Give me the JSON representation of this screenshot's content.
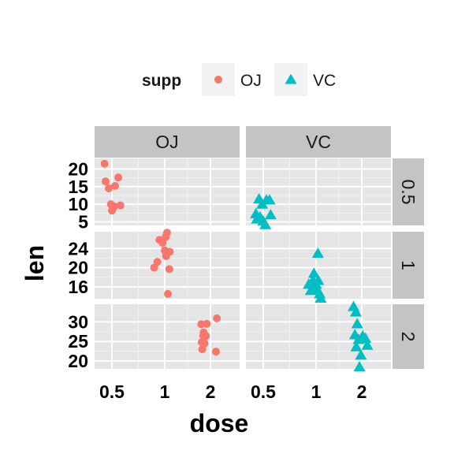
{
  "chart_data": {
    "type": "scatter",
    "xlabel": "dose",
    "ylabel": "len",
    "x_ticks": [
      "0.5",
      "1",
      "2"
    ],
    "x_scale": "categorical-jitter",
    "facet_cols": [
      "OJ",
      "VC"
    ],
    "facet_rows": [
      "0.5",
      "1",
      "2"
    ],
    "legend": {
      "title": "supp",
      "position": "top",
      "entries": [
        {
          "label": "OJ",
          "shape": "circle",
          "color": "#F8766D"
        },
        {
          "label": "VC",
          "shape": "triangle",
          "color": "#00BFC4"
        }
      ]
    },
    "grid": true,
    "panel_background": "#e5e5e5",
    "rows": [
      {
        "dose": "0.5",
        "ylim": [
          4,
          23
        ],
        "y_ticks": [
          5,
          10,
          15,
          20
        ],
        "panels": {
          "OJ": [
            {
              "x": 0.43,
              "y": 21.5
            },
            {
              "x": 0.44,
              "y": 16.5
            },
            {
              "x": 0.47,
              "y": 14.5
            },
            {
              "x": 0.49,
              "y": 10.0
            },
            {
              "x": 0.5,
              "y": 8.2
            },
            {
              "x": 0.52,
              "y": 9.4
            },
            {
              "x": 0.53,
              "y": 15.2
            },
            {
              "x": 0.56,
              "y": 17.6
            },
            {
              "x": 0.58,
              "y": 9.7
            },
            {
              "x": 0.51,
              "y": 9.0
            }
          ],
          "VC": [
            {
              "x": 0.43,
              "y": 7.3
            },
            {
              "x": 0.44,
              "y": 5.8
            },
            {
              "x": 0.46,
              "y": 11.5
            },
            {
              "x": 0.47,
              "y": 6.4
            },
            {
              "x": 0.49,
              "y": 10.0
            },
            {
              "x": 0.52,
              "y": 4.2
            },
            {
              "x": 0.53,
              "y": 11.2
            },
            {
              "x": 0.56,
              "y": 11.2
            },
            {
              "x": 0.57,
              "y": 7.0
            },
            {
              "x": 0.5,
              "y": 5.2
            }
          ]
        }
      },
      {
        "dose": "1",
        "ylim": [
          13.5,
          27.5
        ],
        "y_ticks": [
          16,
          20,
          24
        ],
        "panels": {
          "OJ": [
            {
              "x": 0.9,
              "y": 20.0
            },
            {
              "x": 0.93,
              "y": 21.2
            },
            {
              "x": 0.95,
              "y": 25.8
            },
            {
              "x": 0.98,
              "y": 25.2
            },
            {
              "x": 1.0,
              "y": 23.6
            },
            {
              "x": 1.02,
              "y": 26.4
            },
            {
              "x": 1.03,
              "y": 22.4
            },
            {
              "x": 1.05,
              "y": 27.3
            },
            {
              "x": 1.07,
              "y": 14.5
            },
            {
              "x": 1.1,
              "y": 19.7
            },
            {
              "x": 1.11,
              "y": 23.3
            }
          ],
          "VC": [
            {
              "x": 0.93,
              "y": 16.5
            },
            {
              "x": 0.95,
              "y": 15.2
            },
            {
              "x": 0.97,
              "y": 17.3
            },
            {
              "x": 0.98,
              "y": 18.8
            },
            {
              "x": 1.0,
              "y": 16.5
            },
            {
              "x": 1.02,
              "y": 15.5
            },
            {
              "x": 1.04,
              "y": 23.0
            },
            {
              "x": 1.05,
              "y": 17.3
            },
            {
              "x": 1.08,
              "y": 14.5
            },
            {
              "x": 1.1,
              "y": 13.6
            }
          ]
        }
      },
      {
        "dose": "2",
        "ylim": [
          18,
          34.5
        ],
        "y_ticks": [
          20,
          25,
          30
        ],
        "panels": {
          "OJ": [
            {
              "x": 1.8,
              "y": 29.4
            },
            {
              "x": 1.81,
              "y": 24.8
            },
            {
              "x": 1.82,
              "y": 23.0
            },
            {
              "x": 1.84,
              "y": 26.4
            },
            {
              "x": 1.85,
              "y": 27.3
            },
            {
              "x": 1.87,
              "y": 24.5
            },
            {
              "x": 1.9,
              "y": 26.4
            },
            {
              "x": 1.92,
              "y": 29.5
            },
            {
              "x": 2.12,
              "y": 22.4
            },
            {
              "x": 2.14,
              "y": 30.9
            }
          ],
          "VC": [
            {
              "x": 1.82,
              "y": 33.9
            },
            {
              "x": 1.85,
              "y": 26.7
            },
            {
              "x": 1.87,
              "y": 32.5
            },
            {
              "x": 1.88,
              "y": 23.6
            },
            {
              "x": 1.9,
              "y": 29.5
            },
            {
              "x": 1.93,
              "y": 25.5
            },
            {
              "x": 1.95,
              "y": 18.5
            },
            {
              "x": 1.98,
              "y": 21.5
            },
            {
              "x": 2.02,
              "y": 26.4
            },
            {
              "x": 2.08,
              "y": 25.8
            },
            {
              "x": 2.12,
              "y": 24.0
            }
          ]
        }
      }
    ]
  }
}
